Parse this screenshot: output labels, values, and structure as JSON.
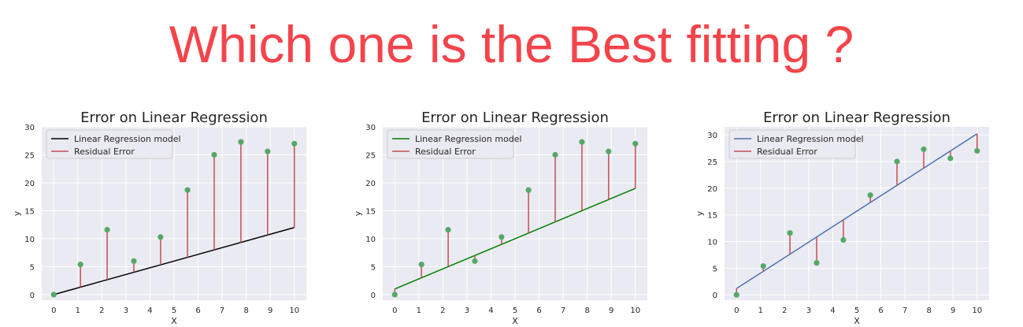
{
  "page_title": "Which one is the Best fitting ?",
  "colors": {
    "title": "#f4444b",
    "residual": "#c44e52",
    "point": "#55a868",
    "plot_bg": "#eaeaf2"
  },
  "chart_data": [
    {
      "type": "scatter",
      "title": "Error on Linear Regression",
      "xlabel": "X",
      "ylabel": "y",
      "xlim": [
        -0.5,
        10.5
      ],
      "ylim": [
        -1,
        30
      ],
      "xticks": [
        0,
        1,
        2,
        3,
        4,
        5,
        6,
        7,
        8,
        9,
        10
      ],
      "yticks": [
        0,
        5,
        10,
        15,
        20,
        25,
        30
      ],
      "grid": true,
      "legend_position": "top-left",
      "points": {
        "x": [
          0,
          1.11,
          2.22,
          3.33,
          4.44,
          5.56,
          6.67,
          7.78,
          8.89,
          10
        ],
        "y": [
          0,
          5.4,
          11.6,
          6.0,
          10.3,
          18.7,
          25.0,
          27.3,
          25.6,
          27.0
        ]
      },
      "fit_line": {
        "name": "Linear Regression model",
        "color": "#000000",
        "x": [
          0,
          10
        ],
        "y": [
          0,
          12
        ]
      },
      "residual_name": "Residual Error"
    },
    {
      "type": "scatter",
      "title": "Error on Linear Regression",
      "xlabel": "X",
      "ylabel": "y",
      "xlim": [
        -0.5,
        10.5
      ],
      "ylim": [
        -1,
        30
      ],
      "xticks": [
        0,
        1,
        2,
        3,
        4,
        5,
        6,
        7,
        8,
        9,
        10
      ],
      "yticks": [
        0,
        5,
        10,
        15,
        20,
        25,
        30
      ],
      "grid": true,
      "legend_position": "top-left",
      "points": {
        "x": [
          0,
          1.11,
          2.22,
          3.33,
          4.44,
          5.56,
          6.67,
          7.78,
          8.89,
          10
        ],
        "y": [
          0,
          5.4,
          11.6,
          6.0,
          10.3,
          18.7,
          25.0,
          27.3,
          25.6,
          27.0
        ]
      },
      "fit_line": {
        "name": "Linear Regression model",
        "color": "#008000",
        "x": [
          0,
          10
        ],
        "y": [
          1,
          19
        ]
      },
      "residual_name": "Residual Error"
    },
    {
      "type": "scatter",
      "title": "Error on Linear Regression",
      "xlabel": "X",
      "ylabel": "y",
      "xlim": [
        -0.5,
        10.5
      ],
      "ylim": [
        -1,
        31.5
      ],
      "xticks": [
        0,
        1,
        2,
        3,
        4,
        5,
        6,
        7,
        8,
        9,
        10
      ],
      "yticks": [
        0,
        5,
        10,
        15,
        20,
        25,
        30
      ],
      "grid": true,
      "legend_position": "top-left",
      "points": {
        "x": [
          0,
          1.11,
          2.22,
          3.33,
          4.44,
          5.56,
          6.67,
          7.78,
          8.89,
          10
        ],
        "y": [
          0,
          5.4,
          11.6,
          6.0,
          10.3,
          18.7,
          25.0,
          27.3,
          25.6,
          27.0
        ]
      },
      "fit_line": {
        "name": "Linear Regression model",
        "color": "#4c72b0",
        "x": [
          0,
          10
        ],
        "y": [
          1.2,
          30.2
        ]
      },
      "residual_name": "Residual Error"
    }
  ]
}
